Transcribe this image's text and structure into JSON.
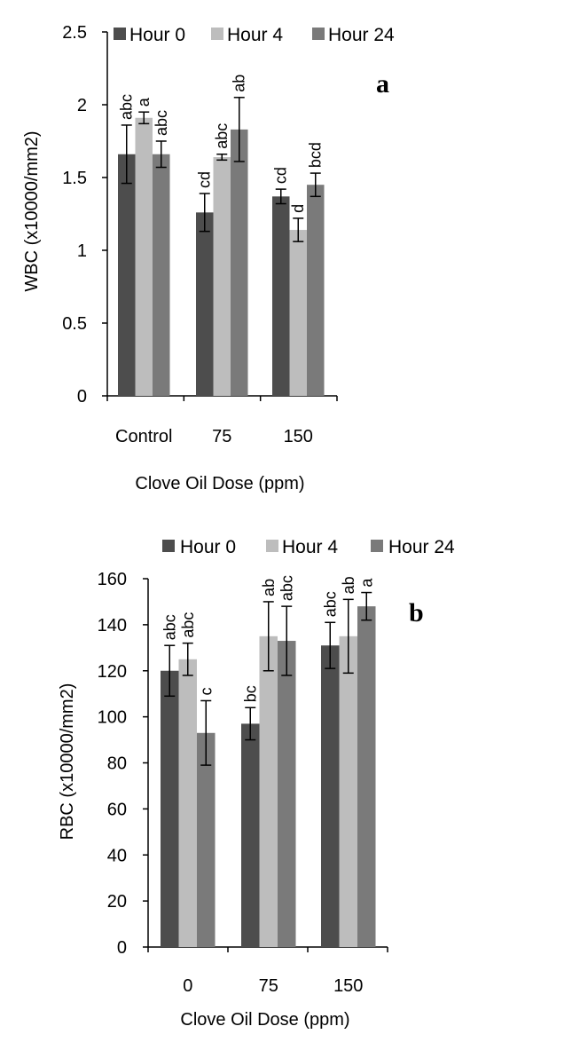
{
  "chart_data": [
    {
      "type": "bar",
      "panel_label": "a",
      "categories": [
        "Control",
        "75",
        "150"
      ],
      "series": [
        {
          "name": "Hour 0",
          "color": "#4d4d4d",
          "values": [
            1.66,
            1.26,
            1.37
          ],
          "errors": [
            0.2,
            0.13,
            0.05
          ]
        },
        {
          "name": "Hour 4",
          "color": "#bdbdbd",
          "values": [
            1.91,
            1.64,
            1.14
          ],
          "errors": [
            0.04,
            0.02,
            0.08
          ]
        },
        {
          "name": "Hour 24",
          "color": "#7a7a7a",
          "values": [
            1.66,
            1.83,
            1.45
          ],
          "errors": [
            0.09,
            0.22,
            0.08
          ]
        }
      ],
      "significance": [
        [
          "abc",
          "a",
          "abc"
        ],
        [
          "cd",
          "abc",
          "ab"
        ],
        [
          "cd",
          "d",
          "bcd"
        ]
      ],
      "xlabel": "Clove Oil Dose (ppm)",
      "ylabel": "WBC (x10000/mm2)",
      "ylim": [
        0,
        2.5
      ],
      "yticks": [
        "0",
        "0.5",
        "1",
        "1.5",
        "2",
        "2.5"
      ],
      "legend_position": "top"
    },
    {
      "type": "bar",
      "panel_label": "b",
      "categories": [
        "0",
        "75",
        "150"
      ],
      "series": [
        {
          "name": "Hour 0",
          "color": "#4d4d4d",
          "values": [
            120,
            97,
            131
          ],
          "errors": [
            11,
            7,
            10
          ]
        },
        {
          "name": "Hour 4",
          "color": "#bdbdbd",
          "values": [
            125,
            135,
            135
          ],
          "errors": [
            7,
            15,
            16
          ]
        },
        {
          "name": "Hour 24",
          "color": "#7a7a7a",
          "values": [
            93,
            133,
            148
          ],
          "errors": [
            14,
            15,
            6
          ]
        }
      ],
      "significance": [
        [
          "abc",
          "abc",
          "c"
        ],
        [
          "bc",
          "ab",
          "abc"
        ],
        [
          "abc",
          "ab",
          "a"
        ]
      ],
      "xlabel": "Clove Oil Dose (ppm)",
      "ylabel": "RBC (x10000/mm2)",
      "ylim": [
        0,
        160
      ],
      "yticks": [
        "0",
        "20",
        "40",
        "60",
        "80",
        "100",
        "120",
        "140",
        "160"
      ],
      "legend_position": "top"
    }
  ]
}
